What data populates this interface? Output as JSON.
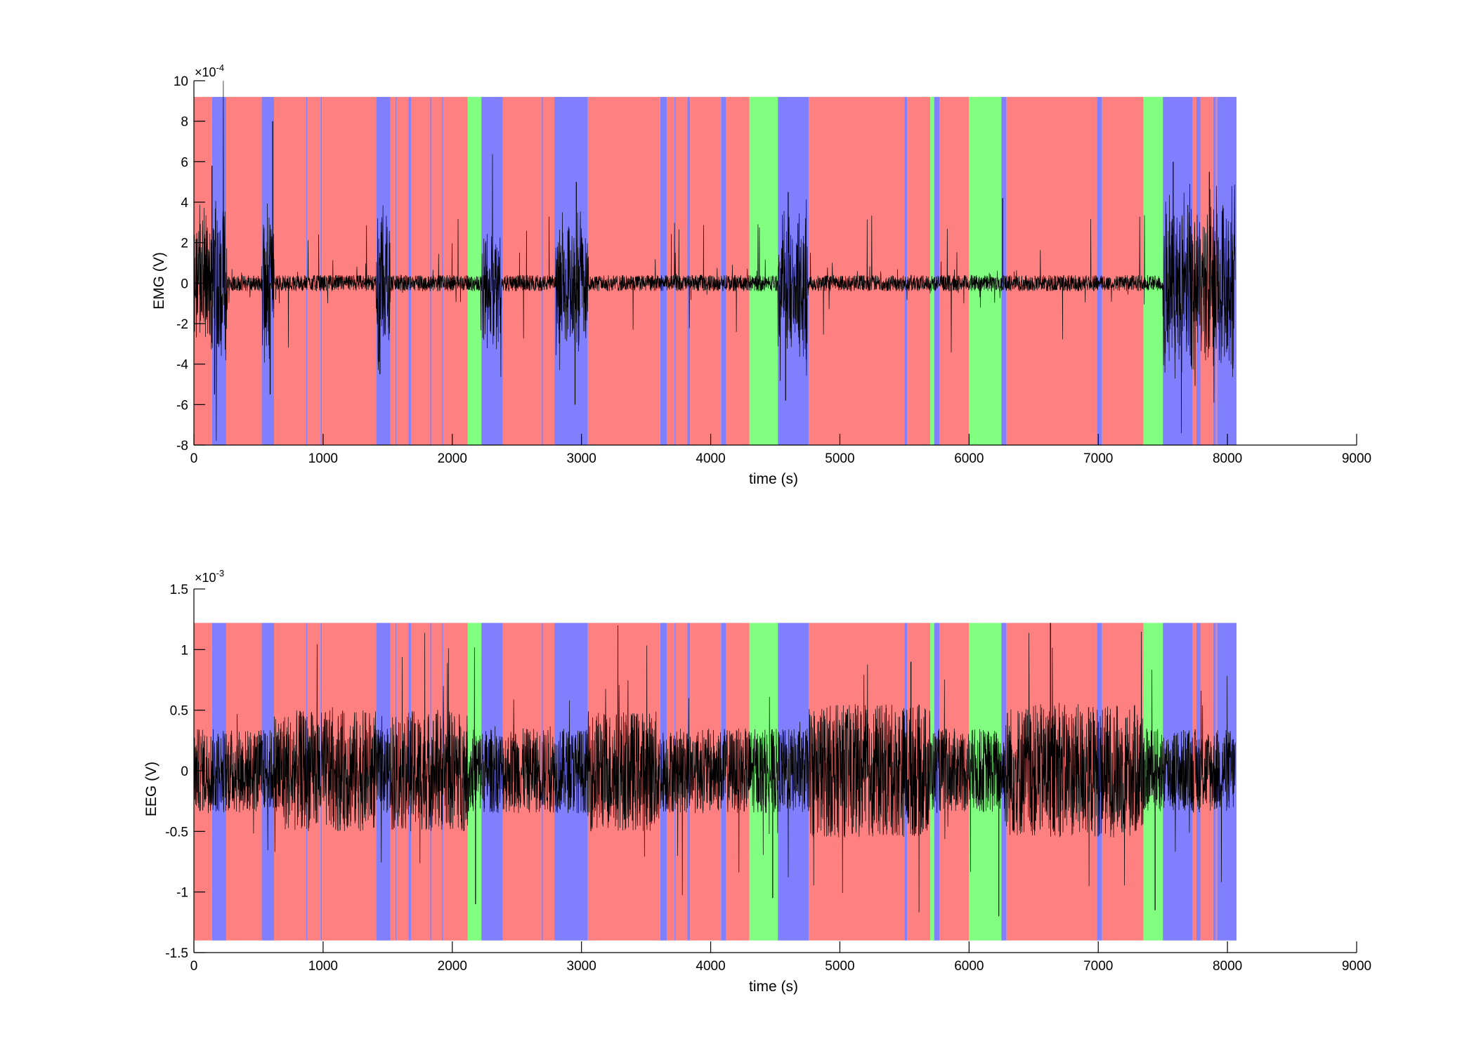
{
  "colors": {
    "state_red": "#ff8080",
    "state_blue": "#8080ff",
    "state_green": "#80ff80",
    "trace": "#000000",
    "axis": "#000000"
  },
  "chart_data": [
    {
      "type": "line",
      "title": "",
      "xlabel": "time (s)",
      "ylabel": "EMG (V)",
      "xlim": [
        0,
        9000
      ],
      "ylim": [
        -8,
        10
      ],
      "y_exponent_label": "×10",
      "y_exponent": "-4",
      "x_ticks": [
        "0",
        "1000",
        "2000",
        "3000",
        "4000",
        "5000",
        "6000",
        "7000",
        "8000",
        "9000"
      ],
      "y_ticks": [
        "-8",
        "-6",
        "-4",
        "-2",
        "0",
        "2",
        "4",
        "6",
        "8",
        "10"
      ],
      "y_tick_values": [
        -8,
        -6,
        -4,
        -2,
        0,
        2,
        4,
        6,
        8,
        10
      ],
      "band_top": 9.2,
      "grid": false,
      "signal": {
        "x_end": 8060,
        "baseline_amp": 0.4,
        "bursts": [
          {
            "start": 0,
            "end": 260,
            "amp": 4.5
          },
          {
            "start": 530,
            "end": 620,
            "amp": 5.0
          },
          {
            "start": 1410,
            "end": 1520,
            "amp": 4.5
          },
          {
            "start": 2230,
            "end": 2380,
            "amp": 3.5
          },
          {
            "start": 2800,
            "end": 3050,
            "amp": 4.0
          },
          {
            "start": 4520,
            "end": 4750,
            "amp": 5.0
          },
          {
            "start": 7500,
            "end": 8060,
            "amp": 5.5
          }
        ],
        "spikes": [
          {
            "t": 610,
            "v": 8.0
          },
          {
            "t": 590,
            "v": -5.5
          },
          {
            "t": 140,
            "v": 5.8
          },
          {
            "t": 160,
            "v": -5.5
          },
          {
            "t": 2950,
            "v": -6.0
          },
          {
            "t": 2960,
            "v": 5.0
          },
          {
            "t": 4580,
            "v": -5.8
          },
          {
            "t": 4600,
            "v": 4.5
          },
          {
            "t": 7580,
            "v": 6.0
          },
          {
            "t": 7860,
            "v": 5.5
          },
          {
            "t": 1440,
            "v": -4.5
          },
          {
            "t": 6260,
            "v": 4.2
          }
        ]
      }
    },
    {
      "type": "line",
      "title": "",
      "xlabel": "time (s)",
      "ylabel": "EEG (V)",
      "xlim": [
        0,
        9000
      ],
      "ylim": [
        -1.5,
        1.5
      ],
      "y_exponent_label": "×10",
      "y_exponent": "-3",
      "x_ticks": [
        "0",
        "1000",
        "2000",
        "3000",
        "4000",
        "5000",
        "6000",
        "7000",
        "8000",
        "9000"
      ],
      "y_ticks": [
        "-1.5",
        "-1",
        "-0.5",
        "0",
        "0.5",
        "1",
        "1.5"
      ],
      "y_tick_values": [
        -1.5,
        -1,
        -0.5,
        0,
        0.5,
        1,
        1.5
      ],
      "band_top": 1.22,
      "band_bottom": -1.4,
      "grid": false,
      "signal": {
        "x_end": 8060,
        "baseline_amp": 0.35,
        "high_amp_segments": [
          {
            "start": 620,
            "end": 1410,
            "amp": 0.5
          },
          {
            "start": 1520,
            "end": 2120,
            "amp": 0.5
          },
          {
            "start": 3050,
            "end": 3600,
            "amp": 0.5
          },
          {
            "start": 4760,
            "end": 5700,
            "amp": 0.55
          },
          {
            "start": 6280,
            "end": 7350,
            "amp": 0.55
          }
        ],
        "spikes": [
          {
            "t": 2180,
            "v": -1.1
          },
          {
            "t": 4480,
            "v": -1.05
          },
          {
            "t": 6230,
            "v": -1.2
          },
          {
            "t": 6630,
            "v": 1.22
          },
          {
            "t": 7440,
            "v": -1.15
          },
          {
            "t": 5550,
            "v": 0.9
          }
        ]
      }
    }
  ],
  "hypnogram_states": [
    {
      "start": 0,
      "end": 140,
      "state": "red"
    },
    {
      "start": 140,
      "end": 250,
      "state": "blue"
    },
    {
      "start": 250,
      "end": 525,
      "state": "red"
    },
    {
      "start": 525,
      "end": 620,
      "state": "blue"
    },
    {
      "start": 620,
      "end": 870,
      "state": "red"
    },
    {
      "start": 870,
      "end": 880,
      "state": "blue"
    },
    {
      "start": 880,
      "end": 980,
      "state": "red"
    },
    {
      "start": 980,
      "end": 990,
      "state": "blue"
    },
    {
      "start": 990,
      "end": 1410,
      "state": "red"
    },
    {
      "start": 1410,
      "end": 1520,
      "state": "blue"
    },
    {
      "start": 1520,
      "end": 1560,
      "state": "red"
    },
    {
      "start": 1560,
      "end": 1570,
      "state": "blue"
    },
    {
      "start": 1570,
      "end": 1660,
      "state": "red"
    },
    {
      "start": 1660,
      "end": 1680,
      "state": "blue"
    },
    {
      "start": 1680,
      "end": 1830,
      "state": "red"
    },
    {
      "start": 1830,
      "end": 1840,
      "state": "blue"
    },
    {
      "start": 1840,
      "end": 1920,
      "state": "red"
    },
    {
      "start": 1920,
      "end": 1930,
      "state": "blue"
    },
    {
      "start": 1930,
      "end": 2120,
      "state": "red"
    },
    {
      "start": 2120,
      "end": 2225,
      "state": "green"
    },
    {
      "start": 2225,
      "end": 2390,
      "state": "blue"
    },
    {
      "start": 2390,
      "end": 2690,
      "state": "red"
    },
    {
      "start": 2690,
      "end": 2700,
      "state": "blue"
    },
    {
      "start": 2700,
      "end": 2790,
      "state": "red"
    },
    {
      "start": 2790,
      "end": 3050,
      "state": "blue"
    },
    {
      "start": 3050,
      "end": 3610,
      "state": "red"
    },
    {
      "start": 3610,
      "end": 3660,
      "state": "blue"
    },
    {
      "start": 3660,
      "end": 3720,
      "state": "red"
    },
    {
      "start": 3720,
      "end": 3730,
      "state": "blue"
    },
    {
      "start": 3730,
      "end": 3820,
      "state": "red"
    },
    {
      "start": 3820,
      "end": 3840,
      "state": "blue"
    },
    {
      "start": 3840,
      "end": 4080,
      "state": "red"
    },
    {
      "start": 4080,
      "end": 4120,
      "state": "blue"
    },
    {
      "start": 4120,
      "end": 4300,
      "state": "red"
    },
    {
      "start": 4300,
      "end": 4520,
      "state": "green"
    },
    {
      "start": 4520,
      "end": 4760,
      "state": "blue"
    },
    {
      "start": 4760,
      "end": 5500,
      "state": "red"
    },
    {
      "start": 5500,
      "end": 5520,
      "state": "blue"
    },
    {
      "start": 5520,
      "end": 5700,
      "state": "red"
    },
    {
      "start": 5700,
      "end": 5730,
      "state": "green"
    },
    {
      "start": 5730,
      "end": 5770,
      "state": "blue"
    },
    {
      "start": 5770,
      "end": 6000,
      "state": "red"
    },
    {
      "start": 6000,
      "end": 6250,
      "state": "green"
    },
    {
      "start": 6250,
      "end": 6290,
      "state": "blue"
    },
    {
      "start": 6290,
      "end": 6990,
      "state": "red"
    },
    {
      "start": 6990,
      "end": 7030,
      "state": "blue"
    },
    {
      "start": 7030,
      "end": 7350,
      "state": "red"
    },
    {
      "start": 7350,
      "end": 7500,
      "state": "green"
    },
    {
      "start": 7500,
      "end": 7730,
      "state": "blue"
    },
    {
      "start": 7730,
      "end": 7760,
      "state": "red"
    },
    {
      "start": 7760,
      "end": 7790,
      "state": "blue"
    },
    {
      "start": 7790,
      "end": 7890,
      "state": "red"
    },
    {
      "start": 7890,
      "end": 7910,
      "state": "blue"
    },
    {
      "start": 7910,
      "end": 7920,
      "state": "red"
    },
    {
      "start": 7920,
      "end": 8070,
      "state": "blue"
    }
  ]
}
